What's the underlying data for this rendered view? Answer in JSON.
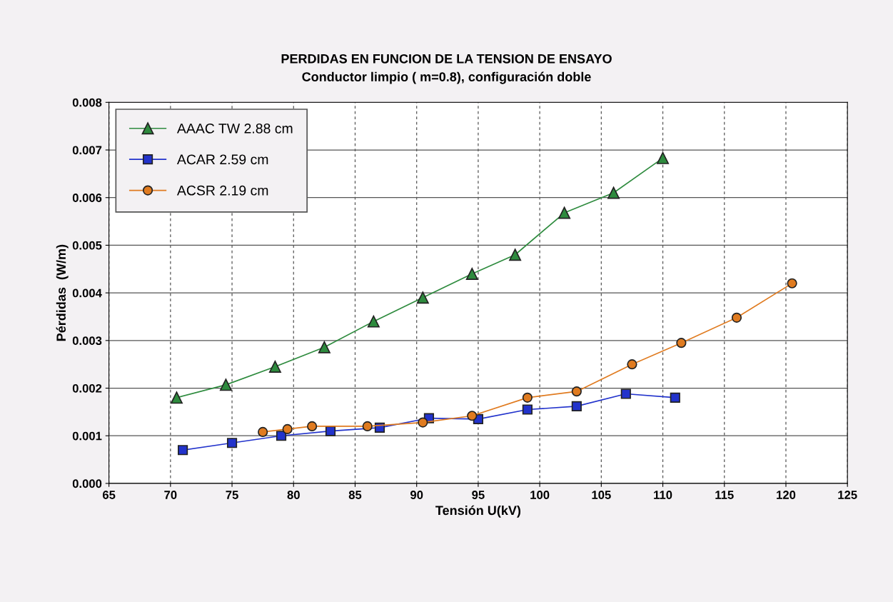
{
  "chart_data": {
    "type": "line",
    "title": "PERDIDAS EN FUNCION DE LA TENSION DE ENSAYO",
    "subtitle": "Conductor limpio ( m=0.8), configuración doble",
    "xlabel": "Tensión U(kV)",
    "ylabel": "Pérdidas  (W/m)",
    "xlim": [
      65,
      125
    ],
    "xticks": [
      65,
      70,
      75,
      80,
      85,
      90,
      95,
      100,
      105,
      110,
      115,
      120,
      125
    ],
    "ylim": [
      0,
      0.008
    ],
    "yticks": [
      {
        "value": 0,
        "label": "0.000"
      },
      {
        "value": 0.001,
        "label": "0.001"
      },
      {
        "value": 0.002,
        "label": "0.002"
      },
      {
        "value": 0.003,
        "label": "0.003"
      },
      {
        "value": 0.004,
        "label": "0.004"
      },
      {
        "value": 0.005,
        "label": "0.005"
      },
      {
        "value": 0.006,
        "label": "0.006"
      },
      {
        "value": 0.007,
        "label": "0.007"
      },
      {
        "value": 0.008,
        "label": "0.008"
      }
    ],
    "grid": true,
    "legend": "top left",
    "line_style": "solid",
    "series": [
      {
        "name": "AAAC TW 2.88 cm",
        "color": "#2e8b3e",
        "marker": "triangle",
        "x": [
          70.5,
          74.5,
          78.5,
          82.5,
          86.5,
          90.5,
          94.5,
          98,
          102,
          106,
          110
        ],
        "values": [
          0.0018,
          0.00207,
          0.00245,
          0.00286,
          0.0034,
          0.0039,
          0.0044,
          0.0048,
          0.00568,
          0.0061,
          0.00683
        ]
      },
      {
        "name": "ACAR 2.59 cm",
        "color": "#2233cc",
        "marker": "square",
        "x": [
          71,
          75,
          79,
          83,
          87,
          91,
          95,
          99,
          103,
          107,
          111
        ],
        "values": [
          0.0007,
          0.00085,
          0.001,
          0.0011,
          0.00117,
          0.00137,
          0.00135,
          0.00155,
          0.00162,
          0.00188,
          0.0018
        ]
      },
      {
        "name": "ACSR 2.19 cm",
        "color": "#e07b20",
        "marker": "circle",
        "x": [
          77.5,
          79.5,
          81.5,
          86,
          90.5,
          94.5,
          99,
          103,
          107.5,
          111.5,
          116,
          120.5
        ],
        "values": [
          0.00108,
          0.00114,
          0.0012,
          0.0012,
          0.00128,
          0.00142,
          0.0018,
          0.00193,
          0.0025,
          0.00295,
          0.00348,
          0.0042
        ]
      }
    ]
  }
}
